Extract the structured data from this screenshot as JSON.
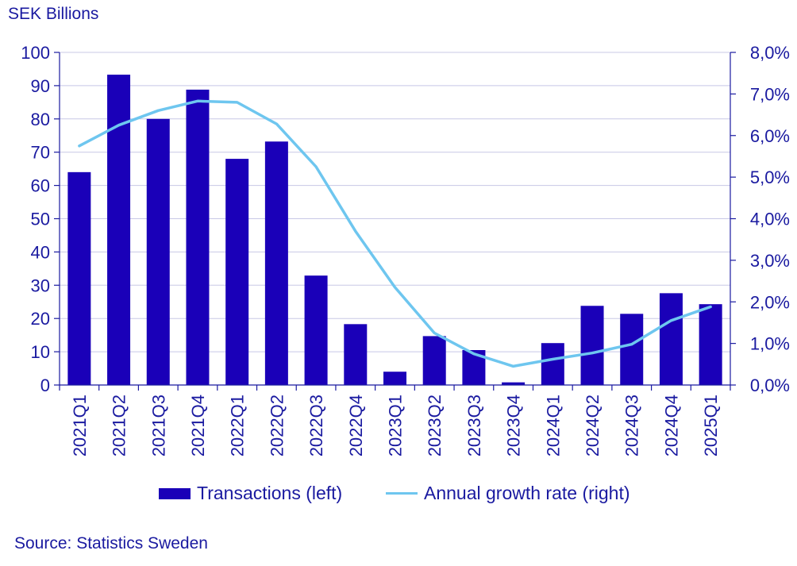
{
  "chart_data": {
    "type": "bar+line",
    "y_left_title": "SEK Billions",
    "categories": [
      "2021Q1",
      "2021Q2",
      "2021Q3",
      "2021Q4",
      "2022Q1",
      "2022Q2",
      "2022Q3",
      "2022Q4",
      "2023Q1",
      "2023Q2",
      "2023Q3",
      "2023Q4",
      "2024Q1",
      "2024Q2",
      "2024Q3",
      "2024Q4",
      "2025Q1"
    ],
    "series": [
      {
        "name": "Transactions (left)",
        "type": "bar",
        "axis": "left",
        "values": [
          64,
          93.3,
          80,
          88.8,
          68,
          73.2,
          32.9,
          18.3,
          4,
          14.7,
          10.5,
          0.8,
          12.6,
          23.8,
          21.4,
          27.6,
          24.3
        ]
      },
      {
        "name": "Annual growth rate (right)",
        "type": "line",
        "axis": "right",
        "values": [
          5.75,
          6.25,
          6.6,
          6.83,
          6.8,
          6.28,
          5.25,
          3.7,
          2.35,
          1.25,
          0.75,
          0.45,
          0.62,
          0.77,
          0.98,
          1.55,
          1.88
        ]
      }
    ],
    "y_left": {
      "min": 0,
      "max": 100,
      "ticks": [
        "0",
        "10",
        "20",
        "30",
        "40",
        "50",
        "60",
        "70",
        "80",
        "90",
        "100"
      ]
    },
    "y_right": {
      "min": 0,
      "max": 8,
      "ticks": [
        "0,0%",
        "1,0%",
        "2,0%",
        "3,0%",
        "4,0%",
        "5,0%",
        "6,0%",
        "7,0%",
        "8,0%"
      ]
    },
    "grid": true,
    "legend_position": "bottom",
    "colors": {
      "bar": "#1a00b8",
      "line": "#6ec6ef",
      "text": "#1a1aa0",
      "grid": "#c8c8e6",
      "axis": "#1a1aa0"
    }
  },
  "source": "Source: Statistics Sweden"
}
